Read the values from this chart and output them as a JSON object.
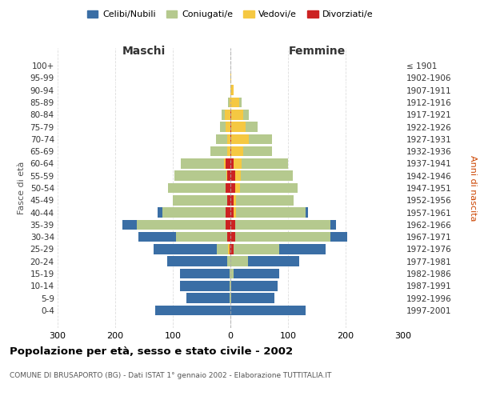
{
  "age_groups": [
    "0-4",
    "5-9",
    "10-14",
    "15-19",
    "20-24",
    "25-29",
    "30-34",
    "35-39",
    "40-44",
    "45-49",
    "50-54",
    "55-59",
    "60-64",
    "65-69",
    "70-74",
    "75-79",
    "80-84",
    "85-89",
    "90-94",
    "95-99",
    "100+"
  ],
  "birth_years": [
    "1997-2001",
    "1992-1996",
    "1987-1991",
    "1982-1986",
    "1977-1981",
    "1972-1976",
    "1967-1971",
    "1962-1966",
    "1957-1961",
    "1952-1956",
    "1947-1951",
    "1942-1946",
    "1937-1941",
    "1932-1936",
    "1927-1931",
    "1922-1926",
    "1917-1921",
    "1912-1916",
    "1907-1911",
    "1902-1906",
    "≤ 1901"
  ],
  "maschi": {
    "celibi": [
      130,
      75,
      85,
      85,
      105,
      110,
      65,
      25,
      8,
      0,
      0,
      0,
      0,
      0,
      0,
      0,
      0,
      0,
      0,
      0,
      0
    ],
    "coniugati": [
      0,
      2,
      2,
      2,
      5,
      20,
      90,
      155,
      110,
      95,
      100,
      90,
      75,
      30,
      20,
      10,
      5,
      2,
      0,
      0,
      0
    ],
    "vedovi": [
      0,
      0,
      0,
      0,
      0,
      2,
      0,
      0,
      0,
      0,
      0,
      2,
      3,
      5,
      5,
      8,
      10,
      2,
      0,
      0,
      0
    ],
    "divorziati": [
      0,
      0,
      0,
      0,
      0,
      2,
      5,
      8,
      8,
      5,
      8,
      5,
      8,
      0,
      0,
      0,
      0,
      0,
      0,
      0,
      0
    ]
  },
  "femmine": {
    "nubili": [
      130,
      75,
      80,
      80,
      90,
      80,
      30,
      10,
      5,
      0,
      0,
      0,
      0,
      0,
      0,
      0,
      0,
      0,
      0,
      0,
      0
    ],
    "coniugate": [
      0,
      2,
      2,
      5,
      30,
      80,
      165,
      165,
      120,
      100,
      100,
      90,
      80,
      50,
      40,
      20,
      10,
      5,
      0,
      0,
      0
    ],
    "vedove": [
      0,
      0,
      0,
      0,
      0,
      0,
      0,
      0,
      5,
      5,
      8,
      10,
      15,
      20,
      30,
      25,
      20,
      15,
      5,
      2,
      0
    ],
    "divorziate": [
      0,
      0,
      0,
      0,
      0,
      5,
      8,
      8,
      5,
      5,
      8,
      8,
      5,
      2,
      2,
      2,
      2,
      0,
      0,
      0,
      0
    ]
  },
  "colors": {
    "celibi": "#3a6ea5",
    "coniugati": "#b5c98e",
    "vedovi": "#f5c842",
    "divorziati": "#cc2222"
  },
  "xlim": 300,
  "title": "Popolazione per età, sesso e stato civile - 2002",
  "subtitle": "COMUNE DI BRUSAPORTO (BG) - Dati ISTAT 1° gennaio 2002 - Elaborazione TUTTITALIA.IT",
  "ylabel_left": "Fasce di età",
  "ylabel_right": "Anni di nascita",
  "xlabel_maschi": "Maschi",
  "xlabel_femmine": "Femmine"
}
